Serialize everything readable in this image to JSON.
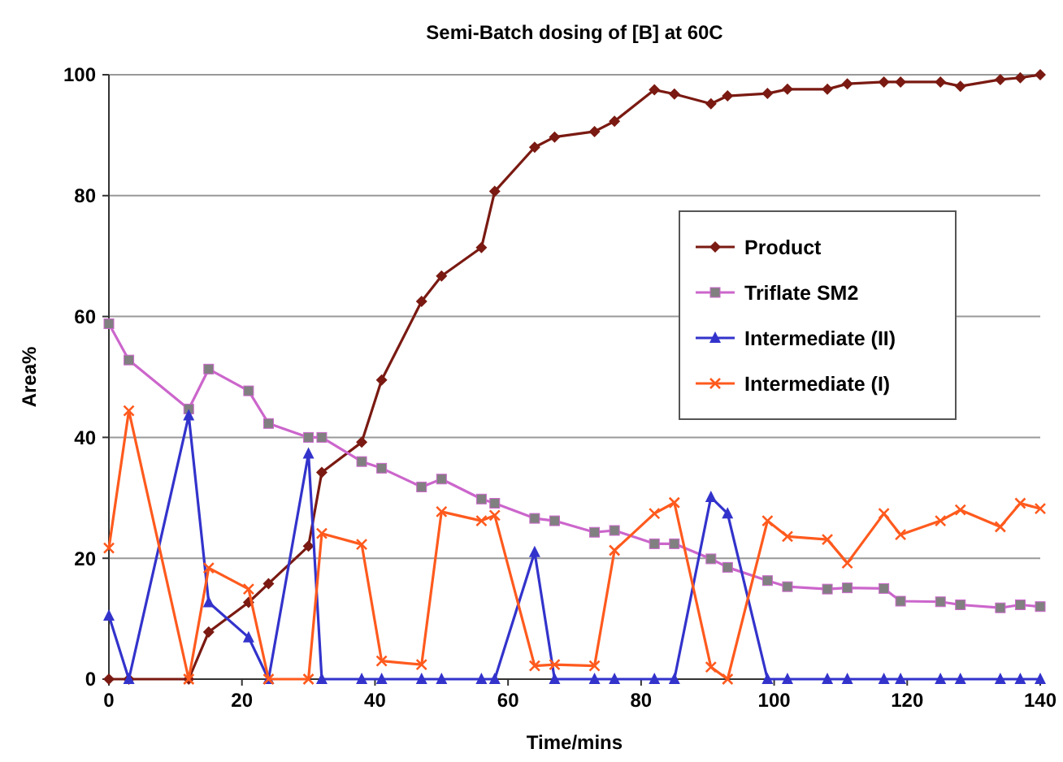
{
  "chart_data": {
    "type": "line",
    "title": "Semi-Batch dosing of [B] at 60C",
    "xlabel": "Time/mins",
    "ylabel": "Area%",
    "x": [
      0,
      3,
      12,
      15,
      21,
      24,
      30,
      32,
      38,
      41,
      47,
      50,
      56,
      58,
      64,
      67,
      73,
      76,
      82,
      85,
      90.5,
      93,
      99,
      102,
      108,
      111,
      116.5,
      119,
      125,
      128,
      134,
      137,
      140
    ],
    "series": [
      {
        "name": "Product",
        "color": "#7a1a12",
        "marker": "diamond",
        "values": [
          0,
          0,
          0,
          7.8,
          12.7,
          15.8,
          22,
          34.2,
          39.2,
          49.5,
          62.5,
          66.7,
          71.4,
          80.7,
          88,
          89.7,
          90.6,
          92.3,
          97.5,
          96.8,
          95.2,
          96.5,
          96.9,
          97.6,
          97.6,
          98.5,
          98.8,
          98.8,
          98.8,
          98.1,
          99.2,
          99.5,
          100
        ]
      },
      {
        "name": "Triflate SM2",
        "color": "#cc66cc",
        "marker": "square",
        "values": [
          58.8,
          52.8,
          44.7,
          51.3,
          47.7,
          42.3,
          40,
          40,
          36,
          34.9,
          31.8,
          33.1,
          29.8,
          29.1,
          26.6,
          26.2,
          24.3,
          24.6,
          22.4,
          22.4,
          19.9,
          18.5,
          16.3,
          15.3,
          14.9,
          15.1,
          15,
          12.9,
          12.8,
          12.3,
          11.8,
          12.3,
          12
        ]
      },
      {
        "name": "Intermediate (II)",
        "color": "#3333cc",
        "marker": "triangle",
        "values": [
          10.5,
          0,
          43.6,
          12.7,
          6.9,
          0,
          37.3,
          0,
          0,
          0,
          0,
          0,
          0,
          0,
          21,
          0,
          0,
          0,
          0,
          0,
          30.1,
          27.4,
          0,
          0,
          0,
          0,
          0,
          0,
          0,
          0,
          0,
          0,
          0
        ]
      },
      {
        "name": "Intermediate (I)",
        "color": "#ff5a1e",
        "marker": "cross",
        "values": [
          21.7,
          44.4,
          0,
          18.4,
          14.9,
          0,
          0,
          24.1,
          22.3,
          3,
          2.4,
          27.7,
          26.2,
          27.1,
          2.2,
          2.4,
          2.2,
          21.3,
          27.4,
          29.2,
          2,
          0,
          26.2,
          23.6,
          23.1,
          19.2,
          27.4,
          23.9,
          26.2,
          28,
          25.2,
          29.1,
          28.2
        ]
      }
    ],
    "xlim": [
      0,
      140
    ],
    "xticks": [
      0,
      20,
      40,
      60,
      80,
      100,
      120,
      140
    ],
    "ylim": [
      0,
      100
    ],
    "yticks": [
      0,
      20,
      40,
      60,
      80,
      100
    ],
    "grid": "y",
    "legend": "right"
  }
}
